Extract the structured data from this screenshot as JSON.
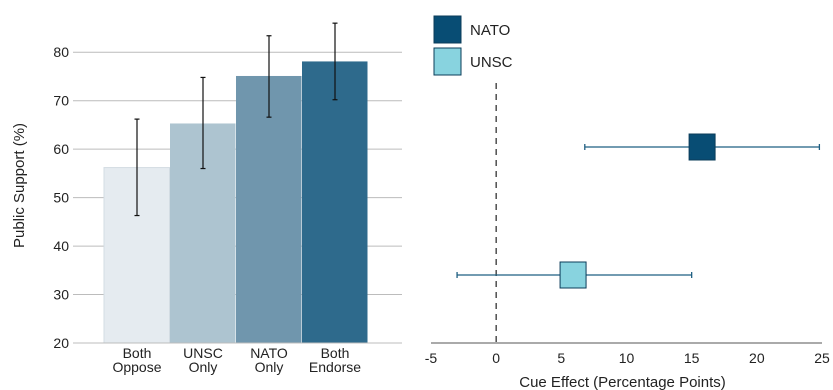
{
  "chart_data": [
    {
      "type": "bar",
      "ylabel": "Public Support (%)",
      "ylim": [
        20,
        85
      ],
      "yticks": [
        20,
        30,
        40,
        50,
        60,
        70,
        80
      ],
      "grid": true,
      "categories": [
        {
          "line1": "Both",
          "line2": "Oppose"
        },
        {
          "line1": "UNSC",
          "line2": "Only"
        },
        {
          "line1": "NATO",
          "line2": "Only"
        },
        {
          "line1": "Both",
          "line2": "Endorse"
        }
      ],
      "values": [
        56.2,
        65.3,
        75.1,
        78.1
      ],
      "error_low": [
        46.3,
        56.0,
        66.6,
        70.2
      ],
      "error_high": [
        66.2,
        74.8,
        83.4,
        86.0
      ],
      "colors": [
        "#e5ebf0",
        "#adc4d0",
        "#7096ad",
        "#2e6a8c"
      ]
    },
    {
      "type": "scatter",
      "xlabel": "Cue Effect (Percentage Points)",
      "xlim": [
        -5,
        25
      ],
      "xticks": [
        -5,
        0,
        5,
        10,
        15,
        20,
        25
      ],
      "reference_line_x": 0,
      "legend_placement": "top-left",
      "series": [
        {
          "name": "NATO",
          "estimate": 15.8,
          "ci_low": 6.8,
          "ci_high": 24.8,
          "color": "#084d74"
        },
        {
          "name": "UNSC",
          "estimate": 5.9,
          "ci_low": -3.0,
          "ci_high": 15.0,
          "color": "#88d3df"
        }
      ]
    }
  ]
}
